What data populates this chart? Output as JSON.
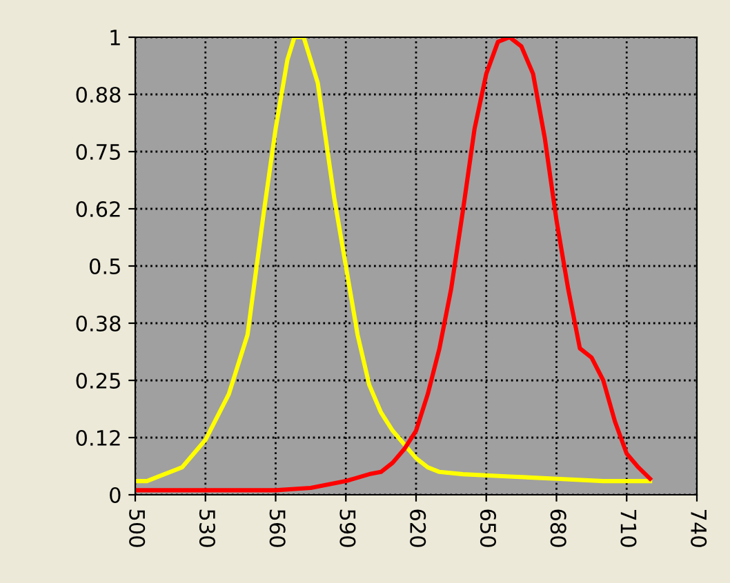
{
  "chart_data": {
    "type": "line",
    "xlim": [
      500,
      740
    ],
    "ylim": [
      0,
      1
    ],
    "xticks": [
      500,
      530,
      560,
      590,
      620,
      650,
      680,
      710,
      740
    ],
    "yticks": [
      0,
      {
        "value": 0.125,
        "label": "0.12"
      },
      {
        "value": 0.25,
        "label": "0.25"
      },
      {
        "value": 0.375,
        "label": "0.38"
      },
      {
        "value": 0.5,
        "label": "0.5"
      },
      {
        "value": 0.625,
        "label": "0.62"
      },
      {
        "value": 0.75,
        "label": "0.75"
      },
      {
        "value": 0.875,
        "label": "0.88"
      },
      1
    ],
    "grid": true,
    "marker": "none",
    "line_style": "solid",
    "series": [
      {
        "color": "#ffff00",
        "x": [
          500,
          505,
          510,
          520,
          530,
          540,
          548,
          555,
          560,
          565,
          568,
          572,
          578,
          585,
          590,
          595,
          600,
          605,
          610,
          615,
          620,
          625,
          630,
          640,
          660,
          680,
          700,
          720
        ],
        "values": [
          0.03,
          0.03,
          0.04,
          0.06,
          0.12,
          0.22,
          0.35,
          0.62,
          0.8,
          0.95,
          1.0,
          1.0,
          0.9,
          0.65,
          0.5,
          0.35,
          0.24,
          0.18,
          0.14,
          0.11,
          0.08,
          0.06,
          0.05,
          0.045,
          0.04,
          0.035,
          0.03,
          0.03
        ]
      },
      {
        "color": "#ff0000",
        "x": [
          500,
          560,
          575,
          590,
          600,
          605,
          610,
          615,
          620,
          625,
          630,
          635,
          640,
          645,
          650,
          655,
          660,
          665,
          670,
          675,
          680,
          685,
          690,
          695,
          700,
          705,
          710,
          715,
          720
        ],
        "values": [
          0.01,
          0.01,
          0.015,
          0.03,
          0.045,
          0.05,
          0.07,
          0.1,
          0.14,
          0.22,
          0.32,
          0.45,
          0.62,
          0.8,
          0.92,
          0.99,
          1.0,
          0.98,
          0.92,
          0.78,
          0.6,
          0.45,
          0.32,
          0.3,
          0.25,
          0.16,
          0.09,
          0.06,
          0.035
        ]
      }
    ]
  }
}
